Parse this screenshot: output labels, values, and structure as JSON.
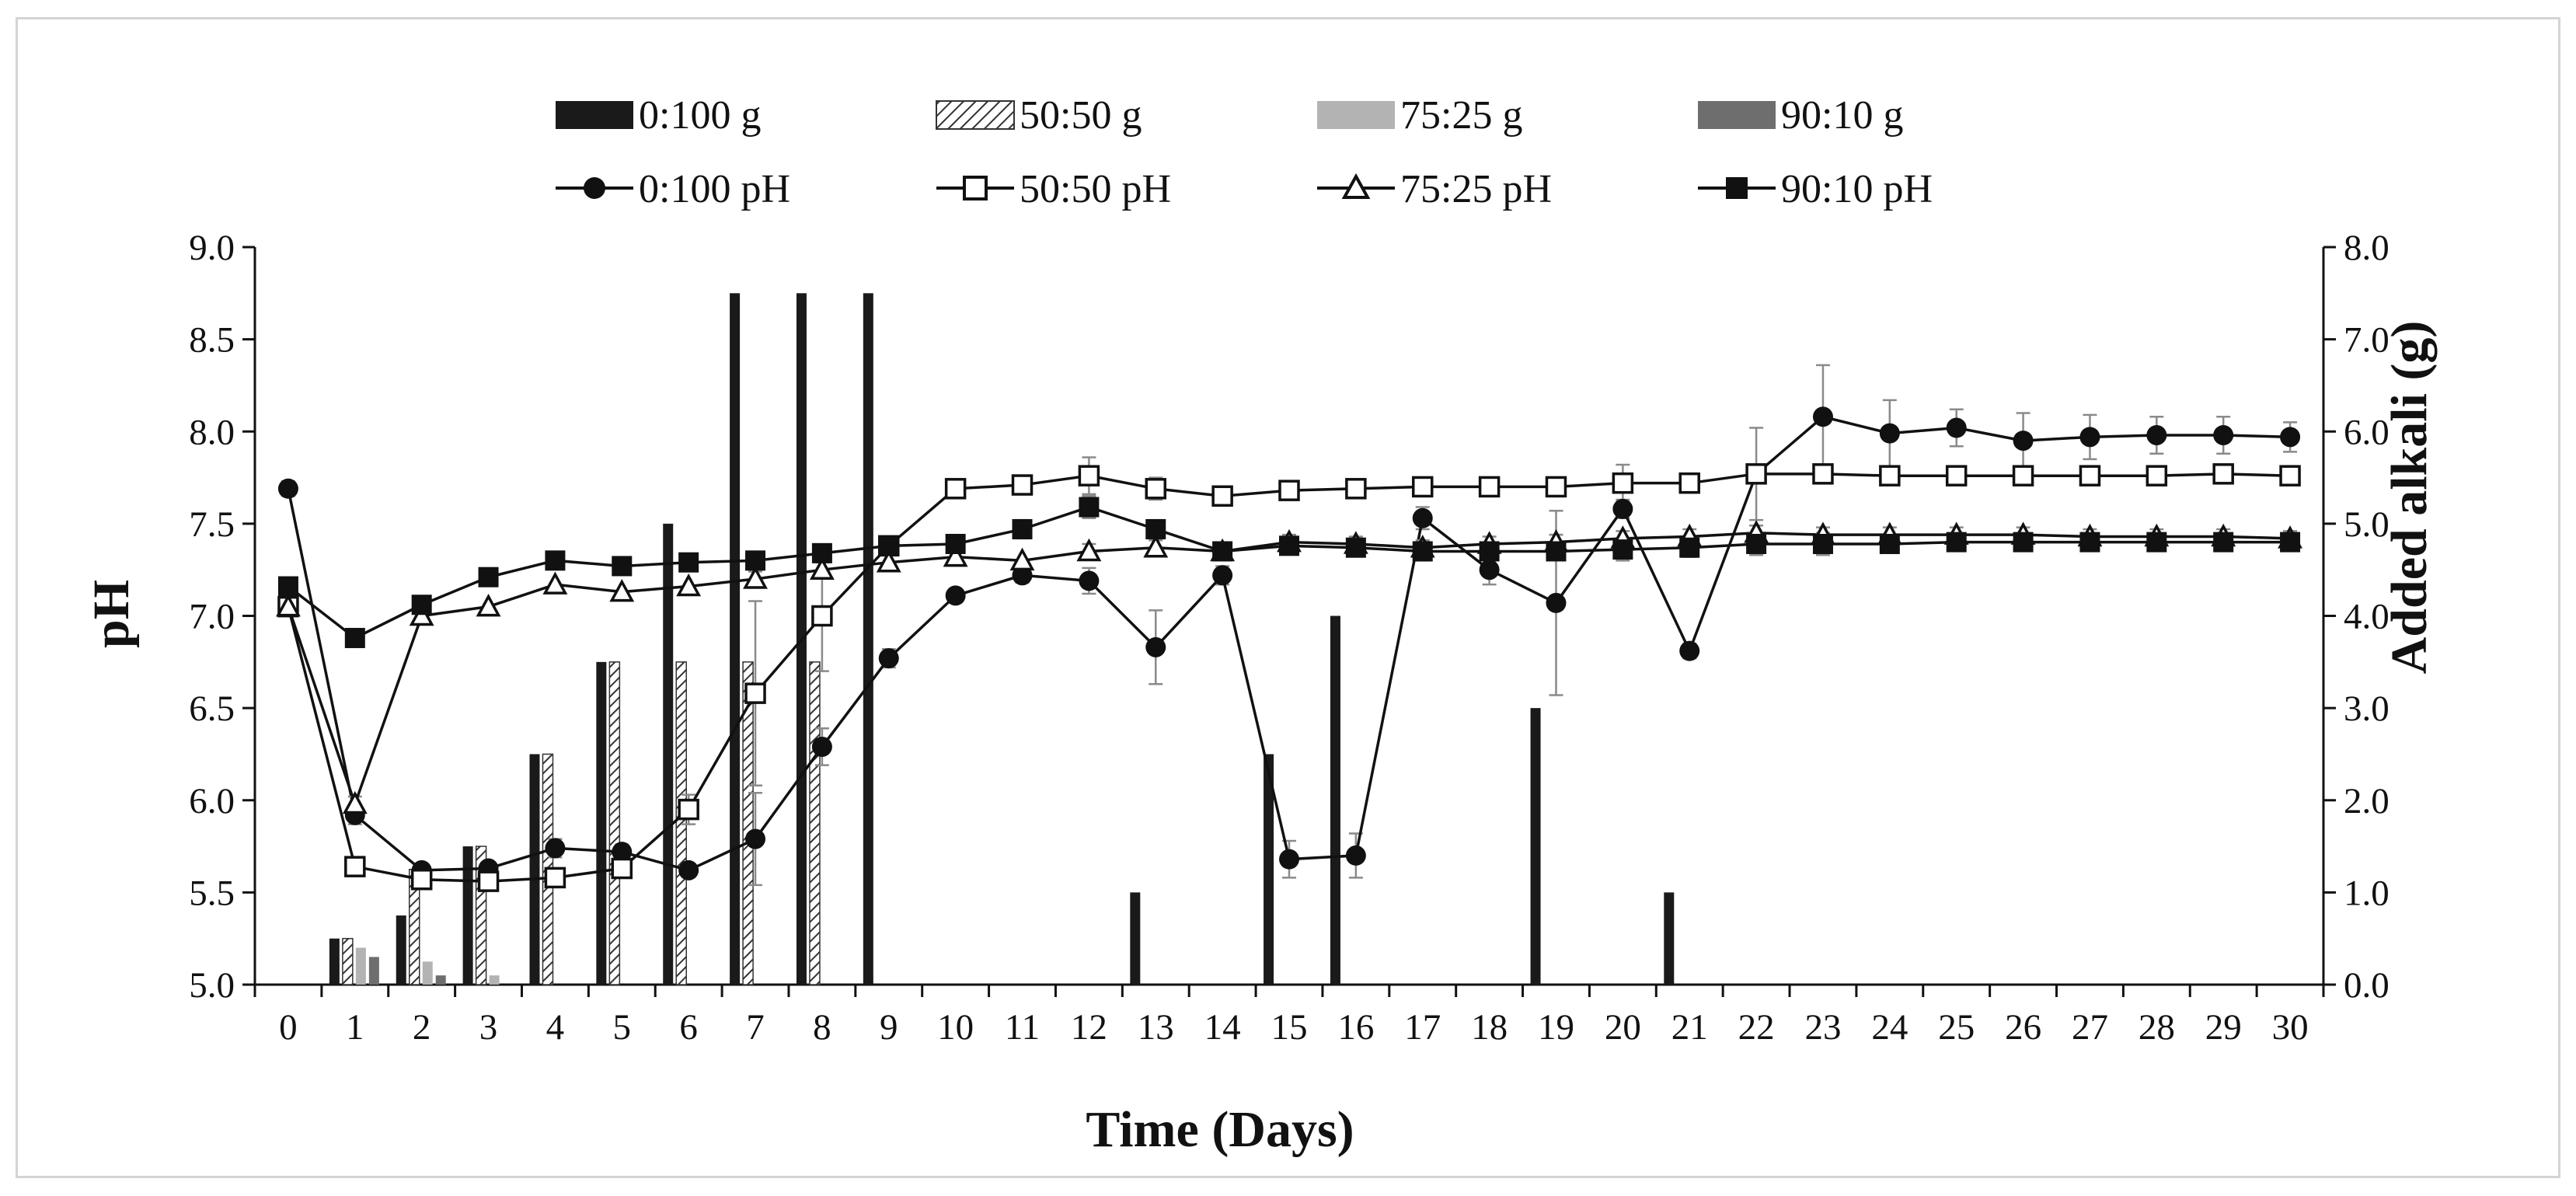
{
  "chart_data": {
    "type": "bar+line",
    "xlabel": "Time (Days)",
    "ylabel": "pH",
    "y2label": "Added alkali (g)",
    "ylim": [
      5.0,
      9.0
    ],
    "y2lim": [
      0.0,
      8.0
    ],
    "xticks": [
      "0",
      "1",
      "2",
      "3",
      "4",
      "5",
      "6",
      "7",
      "8",
      "9",
      "10",
      "11",
      "12",
      "13",
      "14",
      "15",
      "16",
      "17",
      "18",
      "19",
      "20",
      "21",
      "22",
      "23",
      "24",
      "25",
      "26",
      "27",
      "28",
      "29",
      "30"
    ],
    "yticks": [
      "5.0",
      "5.5",
      "6.0",
      "6.5",
      "7.0",
      "7.5",
      "8.0",
      "8.5",
      "9.0"
    ],
    "y2ticks": [
      "0.0",
      "1.0",
      "2.0",
      "3.0",
      "4.0",
      "5.0",
      "6.0",
      "7.0",
      "8.0"
    ],
    "legend_position": "top",
    "bar_series": [
      {
        "name": "0:100 g",
        "pattern": "solid-black",
        "color": "#1a1a1a",
        "values": [
          0,
          0.5,
          0.75,
          1.5,
          2.5,
          3.5,
          5,
          7.5,
          7.5,
          7.5,
          0,
          0,
          0,
          1,
          0,
          2.5,
          4,
          0,
          0,
          3,
          0,
          1,
          0,
          0,
          0,
          0,
          0,
          0,
          0,
          0,
          0
        ]
      },
      {
        "name": "50:50 g",
        "pattern": "hatched",
        "color": "#555555",
        "values": [
          0,
          0.5,
          1.25,
          1.5,
          2.5,
          3.5,
          3.5,
          3.5,
          3.5,
          0,
          0,
          0,
          0,
          0,
          0,
          0,
          0,
          0,
          0,
          0,
          0,
          0,
          0,
          0,
          0,
          0,
          0,
          0,
          0,
          0,
          0
        ]
      },
      {
        "name": "75:25 g",
        "pattern": "solid-light-gray",
        "color": "#b3b3b3",
        "values": [
          0,
          0.4,
          0.25,
          0.1,
          0,
          0,
          0,
          0,
          0,
          0,
          0,
          0,
          0,
          0,
          0,
          0,
          0,
          0,
          0,
          0,
          0,
          0,
          0,
          0,
          0,
          0,
          0,
          0,
          0,
          0,
          0
        ]
      },
      {
        "name": "90:10 g",
        "pattern": "solid-dark-gray",
        "color": "#6e6e6e",
        "values": [
          0,
          0.3,
          0.1,
          0,
          0,
          0,
          0,
          0,
          0,
          0,
          0,
          0,
          0,
          0,
          0,
          0,
          0,
          0,
          0,
          0,
          0,
          0,
          0,
          0,
          0,
          0,
          0,
          0,
          0,
          0,
          0
        ]
      }
    ],
    "line_series": [
      {
        "name": "0:100 pH",
        "marker": "filled-circle",
        "values": [
          7.69,
          5.92,
          5.62,
          5.63,
          5.74,
          5.72,
          5.62,
          5.79,
          6.29,
          6.77,
          7.11,
          7.22,
          7.19,
          6.83,
          7.22,
          5.68,
          5.7,
          7.53,
          7.25,
          7.07,
          7.58,
          6.81,
          7.77,
          8.08,
          7.99,
          8.02,
          7.95,
          7.97,
          7.98,
          7.98,
          7.97
        ],
        "errors": [
          0.04,
          0.05,
          0.03,
          0.03,
          0.05,
          0.04,
          0.03,
          0.25,
          0.1,
          0.05,
          0.03,
          0.04,
          0.07,
          0.2,
          0.05,
          0.1,
          0.12,
          0.06,
          0.08,
          0.5,
          0.05,
          0.04,
          0.25,
          0.28,
          0.18,
          0.1,
          0.15,
          0.12,
          0.1,
          0.1,
          0.08
        ]
      },
      {
        "name": "50:50 pH",
        "marker": "open-square",
        "values": [
          7.05,
          5.64,
          5.57,
          5.56,
          5.58,
          5.63,
          5.95,
          6.58,
          7.0,
          7.38,
          7.69,
          7.71,
          7.76,
          7.69,
          7.65,
          7.68,
          7.69,
          7.7,
          7.7,
          7.7,
          7.72,
          7.72,
          7.77,
          7.77,
          7.76,
          7.76,
          7.76,
          7.76,
          7.76,
          7.77,
          7.76
        ],
        "errors": [
          0.03,
          0.03,
          0.03,
          0.03,
          0.03,
          0.03,
          0.08,
          0.5,
          0.3,
          0.04,
          0.03,
          0.03,
          0.1,
          0.06,
          0.03,
          0.05,
          0.05,
          0.05,
          0.05,
          0.05,
          0.1,
          0.05,
          0.05,
          0.05,
          0.04,
          0.04,
          0.04,
          0.04,
          0.04,
          0.04,
          0.04
        ]
      },
      {
        "name": "75:25 pH",
        "marker": "open-triangle",
        "values": [
          7.05,
          5.98,
          7.0,
          7.05,
          7.17,
          7.13,
          7.16,
          7.2,
          7.25,
          7.29,
          7.32,
          7.3,
          7.35,
          7.37,
          7.35,
          7.4,
          7.39,
          7.37,
          7.39,
          7.4,
          7.42,
          7.43,
          7.45,
          7.44,
          7.44,
          7.44,
          7.44,
          7.43,
          7.43,
          7.43,
          7.42
        ],
        "errors": [
          0.03,
          0.04,
          0.03,
          0.03,
          0.03,
          0.03,
          0.03,
          0.04,
          0.04,
          0.04,
          0.03,
          0.03,
          0.04,
          0.04,
          0.03,
          0.04,
          0.04,
          0.04,
          0.04,
          0.04,
          0.04,
          0.04,
          0.04,
          0.04,
          0.04,
          0.04,
          0.04,
          0.04,
          0.04,
          0.04,
          0.04
        ]
      },
      {
        "name": "90:10 pH",
        "marker": "filled-square",
        "values": [
          7.16,
          6.88,
          7.06,
          7.21,
          7.3,
          7.27,
          7.29,
          7.3,
          7.34,
          7.38,
          7.39,
          7.47,
          7.59,
          7.47,
          7.35,
          7.38,
          7.37,
          7.35,
          7.35,
          7.35,
          7.36,
          7.37,
          7.39,
          7.39,
          7.39,
          7.4,
          7.4,
          7.4,
          7.4,
          7.4,
          7.4
        ],
        "errors": [
          0.03,
          0.03,
          0.03,
          0.03,
          0.03,
          0.03,
          0.03,
          0.03,
          0.03,
          0.03,
          0.03,
          0.05,
          0.06,
          0.05,
          0.03,
          0.03,
          0.04,
          0.05,
          0.04,
          0.04,
          0.06,
          0.05,
          0.06,
          0.06,
          0.04,
          0.04,
          0.04,
          0.04,
          0.04,
          0.04,
          0.04
        ]
      }
    ],
    "grid": false,
    "error_bars": true
  }
}
